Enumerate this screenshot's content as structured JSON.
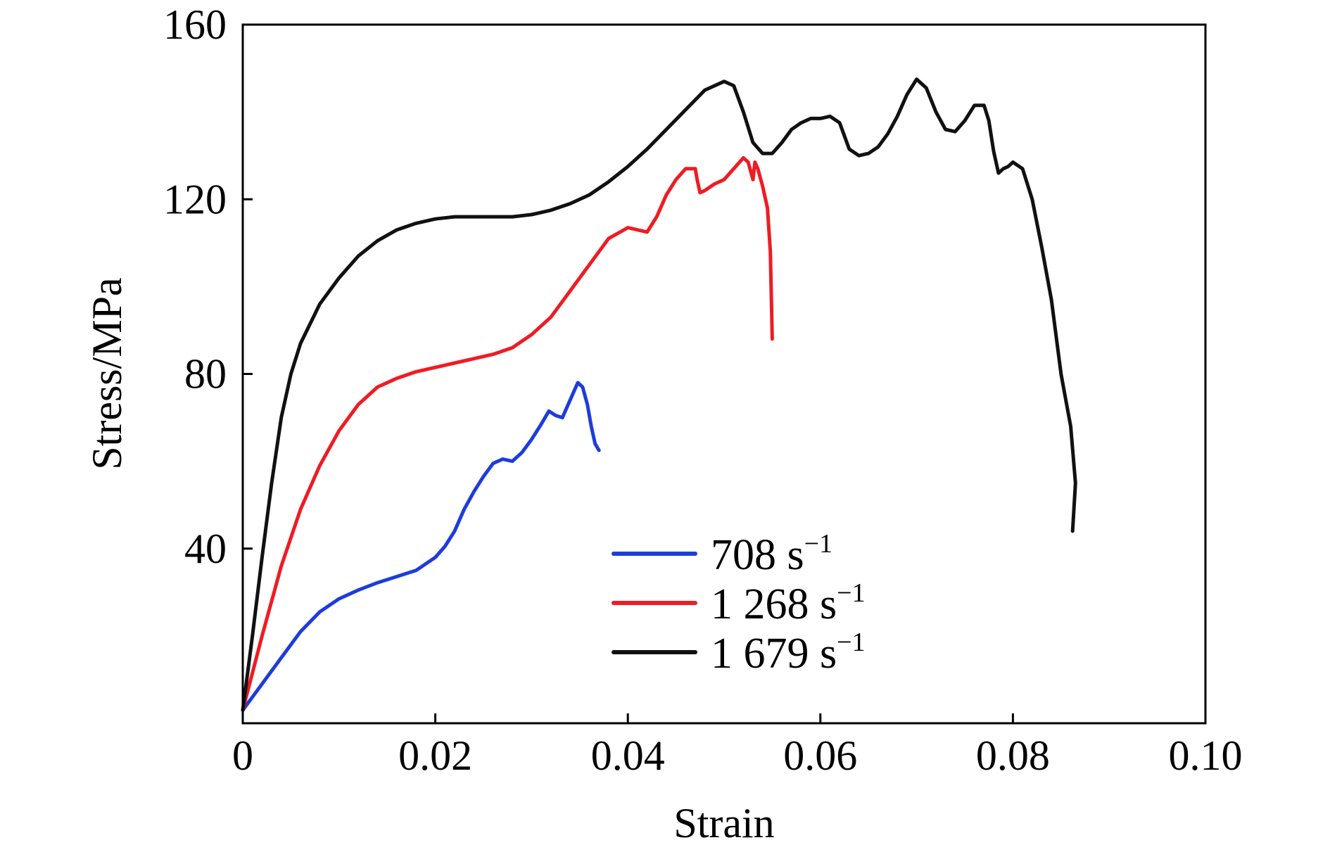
{
  "chart_data": {
    "type": "line",
    "title": "",
    "xlabel": "Strain",
    "ylabel": "Stress/MPa",
    "xlim": [
      0,
      0.1
    ],
    "ylim": [
      0,
      160
    ],
    "x_ticks": [
      0,
      0.02,
      0.04,
      0.06,
      0.08,
      0.1
    ],
    "x_tick_labels": [
      "0",
      "0.02",
      "0.04",
      "0.06",
      "0.08",
      "0.10"
    ],
    "y_ticks": [
      40,
      80,
      120,
      160
    ],
    "y_tick_labels": [
      "40",
      "80",
      "120",
      "160"
    ],
    "grid": false,
    "legend_position": "bottom-center",
    "series": [
      {
        "name": "708 s⁻¹",
        "legend_main": "708 s",
        "legend_sup": "−1",
        "color": "#1e3cdc",
        "x": [
          0,
          0.002,
          0.004,
          0.006,
          0.008,
          0.01,
          0.012,
          0.014,
          0.016,
          0.018,
          0.02,
          0.021,
          0.022,
          0.023,
          0.024,
          0.025,
          0.026,
          0.027,
          0.028,
          0.029,
          0.03,
          0.031,
          0.0318,
          0.0325,
          0.0332,
          0.034,
          0.0348,
          0.0353,
          0.0358,
          0.0362,
          0.0366,
          0.037
        ],
        "y": [
          3,
          9,
          15,
          21,
          25.5,
          28.5,
          30.5,
          32.2,
          33.6,
          35,
          38,
          40.5,
          44,
          49,
          53,
          56.5,
          59.5,
          60.5,
          60,
          62,
          65,
          68.5,
          71.5,
          70.5,
          70,
          74,
          78,
          77,
          73,
          68,
          64,
          62.5
        ]
      },
      {
        "name": "1 268 s⁻¹",
        "legend_main": "1 268 s",
        "legend_sup": "−1",
        "color": "#ee1c24",
        "x": [
          0,
          0.002,
          0.004,
          0.006,
          0.008,
          0.01,
          0.012,
          0.014,
          0.016,
          0.018,
          0.02,
          0.022,
          0.024,
          0.026,
          0.028,
          0.03,
          0.032,
          0.034,
          0.036,
          0.038,
          0.04,
          0.041,
          0.042,
          0.043,
          0.044,
          0.045,
          0.046,
          0.047,
          0.0472,
          0.0475,
          0.048,
          0.049,
          0.05,
          0.051,
          0.052,
          0.0525,
          0.053,
          0.0532,
          0.0535,
          0.054,
          0.0545,
          0.0548,
          0.055
        ],
        "y": [
          3,
          20,
          36,
          49,
          59,
          67,
          73,
          77,
          79,
          80.5,
          81.5,
          82.5,
          83.5,
          84.5,
          86,
          89,
          93,
          99,
          105,
          111,
          113.5,
          113,
          112.5,
          116,
          121,
          124.5,
          127,
          127,
          124.5,
          121.5,
          122,
          123.5,
          124.5,
          127,
          129.5,
          128.5,
          124.5,
          128.5,
          127,
          123,
          118,
          108,
          88
        ]
      },
      {
        "name": "1 679 s⁻¹",
        "legend_main": "1 679 s",
        "legend_sup": "−1",
        "color": "#111111",
        "x": [
          0,
          0.001,
          0.002,
          0.003,
          0.004,
          0.005,
          0.006,
          0.008,
          0.01,
          0.012,
          0.014,
          0.016,
          0.018,
          0.02,
          0.022,
          0.024,
          0.026,
          0.028,
          0.03,
          0.032,
          0.034,
          0.036,
          0.038,
          0.04,
          0.042,
          0.044,
          0.046,
          0.048,
          0.05,
          0.051,
          0.052,
          0.053,
          0.054,
          0.055,
          0.056,
          0.057,
          0.058,
          0.059,
          0.06,
          0.061,
          0.062,
          0.063,
          0.064,
          0.065,
          0.066,
          0.067,
          0.068,
          0.069,
          0.07,
          0.071,
          0.072,
          0.073,
          0.074,
          0.075,
          0.076,
          0.077,
          0.0775,
          0.078,
          0.0785,
          0.079,
          0.0795,
          0.08,
          0.081,
          0.082,
          0.083,
          0.084,
          0.085,
          0.0855,
          0.086,
          0.0865,
          0.0862
        ],
        "y": [
          3,
          20,
          38,
          55,
          70,
          80,
          87,
          96,
          102,
          107,
          110.5,
          113,
          114.5,
          115.5,
          116,
          116,
          116,
          116,
          116.5,
          117.5,
          119,
          121,
          124,
          127.5,
          131.5,
          136,
          140.5,
          145,
          147,
          146,
          140,
          133,
          130.5,
          130.5,
          133,
          136,
          137.5,
          138.5,
          138.5,
          139,
          137.5,
          131.5,
          130,
          130.5,
          132,
          135,
          139,
          144,
          147.5,
          145.5,
          140,
          136,
          135.5,
          138,
          141.5,
          141.5,
          138,
          131,
          126,
          127,
          127.5,
          128.5,
          127,
          120,
          109,
          97,
          80,
          74,
          68,
          55,
          44
        ]
      }
    ]
  }
}
